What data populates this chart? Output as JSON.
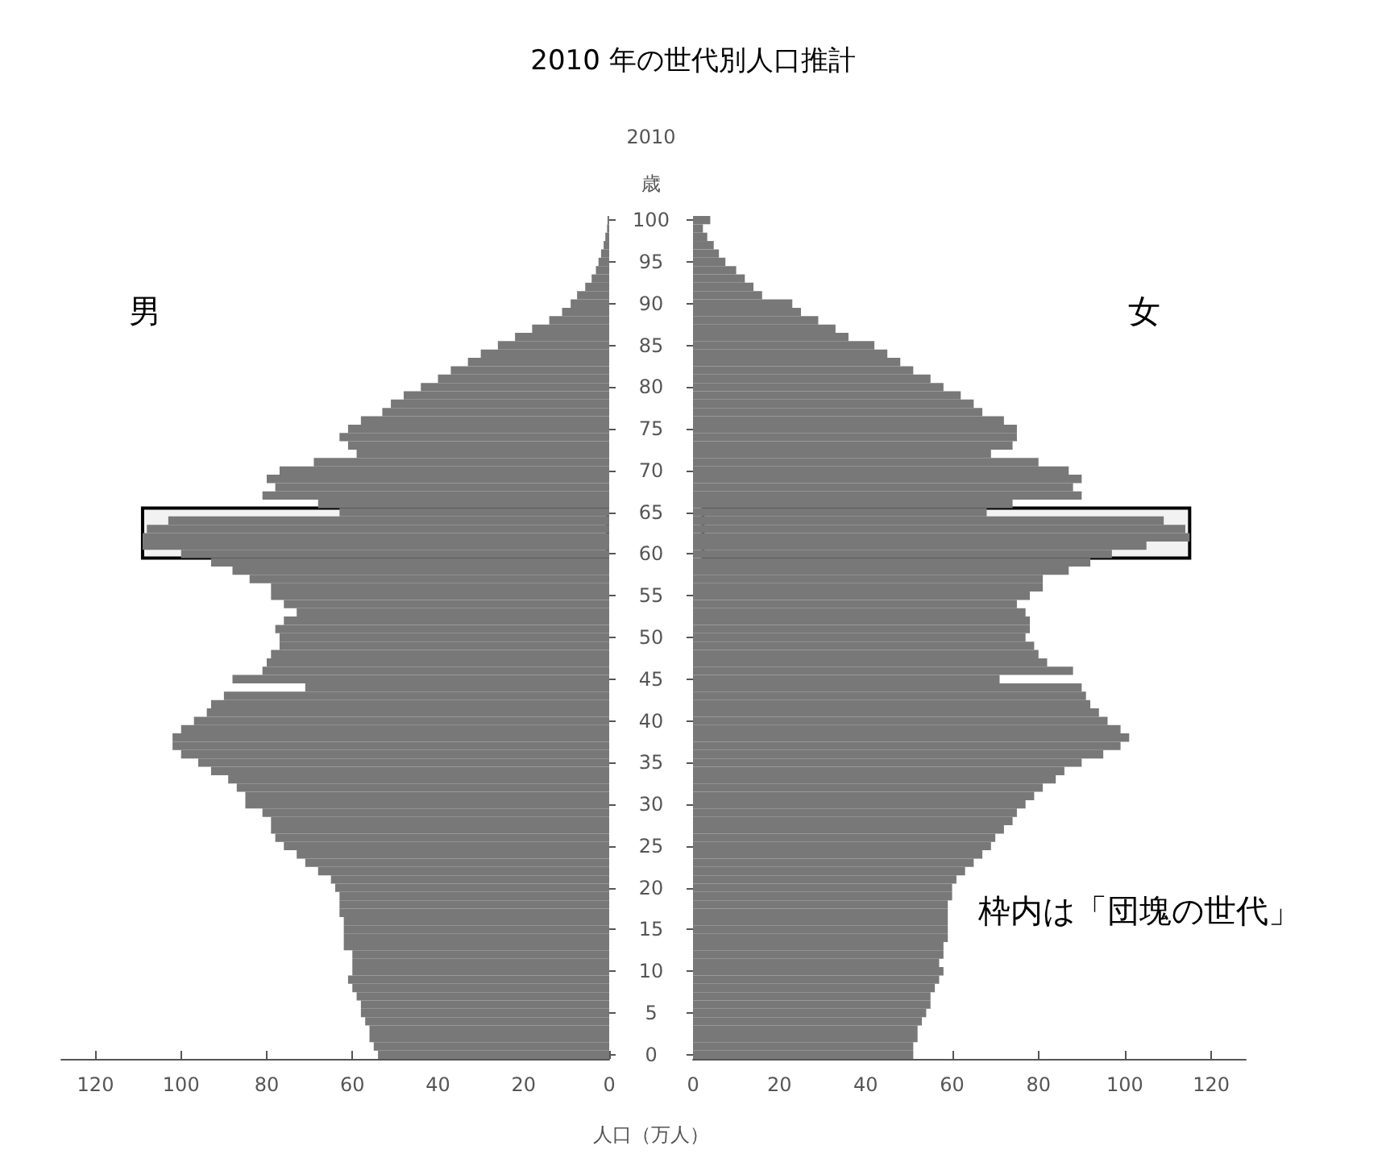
{
  "chart_data": [
    {
      "type": "bar",
      "orientation": "horizontal",
      "title": "2010 年の世代別人口推計",
      "xlabel": "人口（万人）",
      "ylabel": "歳",
      "annotations": [
        "2010"
      ],
      "categories": [
        "100",
        null,
        null,
        null,
        null,
        "95",
        null,
        null,
        null,
        null,
        "90",
        null,
        null,
        null,
        null,
        "85",
        null,
        null,
        null,
        null,
        "80",
        null,
        null,
        null,
        null,
        "75",
        null,
        null,
        null,
        null,
        "70",
        null,
        null,
        null,
        null,
        "65",
        null,
        null,
        null,
        null,
        "60",
        null,
        null,
        null,
        null,
        "55",
        null,
        null,
        null,
        null,
        "50",
        null,
        null,
        null,
        null,
        "45",
        null,
        null,
        null,
        null,
        "40",
        null,
        null,
        null,
        null,
        "35",
        null,
        null,
        null,
        null,
        "30",
        null,
        null,
        null,
        null,
        "25",
        null,
        null,
        null,
        null,
        "20",
        null,
        null,
        null,
        null,
        "15",
        null,
        null,
        null,
        null,
        "10",
        null,
        null,
        null,
        null,
        "5",
        null,
        null,
        null,
        null,
        "0"
      ],
      "series": [
        {
          "name": "男",
          "color": "#787878",
          "values": [
            0.4,
            0.5,
            0.9,
            1.3,
            1.9,
            2.5,
            3.1,
            4.1,
            5.6,
            7.5,
            9,
            11,
            14,
            18,
            22,
            26,
            30,
            33,
            37,
            40,
            44,
            48,
            51,
            53,
            58,
            61,
            63,
            61,
            59,
            69,
            77,
            80,
            78,
            81,
            68,
            63,
            103,
            108,
            109,
            109,
            100,
            93,
            88,
            84,
            79,
            79,
            76,
            73,
            76,
            78,
            77,
            77,
            79,
            80,
            81,
            88,
            71,
            90,
            93,
            94,
            97,
            100,
            102,
            102,
            100,
            96,
            93,
            89,
            87,
            85,
            85,
            81,
            79,
            79,
            78,
            76,
            73,
            71,
            68,
            65,
            64,
            63,
            63,
            63,
            62,
            62,
            62,
            62,
            60,
            60,
            60,
            61,
            60,
            59,
            58,
            58,
            57,
            56,
            56,
            55,
            54
          ]
        }
      ],
      "xlim": [
        128,
        0
      ],
      "xticks": [
        120,
        100,
        80,
        60,
        40,
        20,
        0
      ],
      "bands": [
        {
          "axis": "y",
          "from": "65",
          "to": "60",
          "color": "#000000"
        }
      ]
    },
    {
      "type": "bar",
      "orientation": "horizontal",
      "annotations": [
        "枠内は「団塊の世代」"
      ],
      "tick_labels": "x",
      "categories": [
        "100",
        null,
        null,
        null,
        null,
        "95",
        null,
        null,
        null,
        null,
        "90",
        null,
        null,
        null,
        null,
        "85",
        null,
        null,
        null,
        null,
        "80",
        null,
        null,
        null,
        null,
        "75",
        null,
        null,
        null,
        null,
        "70",
        null,
        null,
        null,
        null,
        "65",
        null,
        null,
        null,
        null,
        "60",
        null,
        null,
        null,
        null,
        "55",
        null,
        null,
        null,
        null,
        "50",
        null,
        null,
        null,
        null,
        "45",
        null,
        null,
        null,
        null,
        "40",
        null,
        null,
        null,
        null,
        "35",
        null,
        null,
        null,
        null,
        "30",
        null,
        null,
        null,
        null,
        "25",
        null,
        null,
        null,
        null,
        "20",
        null,
        null,
        null,
        null,
        "15",
        null,
        null,
        null,
        null,
        "10",
        null,
        null,
        null,
        null,
        "5",
        null,
        null,
        null,
        null,
        "0"
      ],
      "series": [
        {
          "name": "女",
          "color": "#787878",
          "values": [
            4,
            2.3,
            3.3,
            4.8,
            6,
            7.5,
            10,
            12,
            14,
            16,
            23,
            25,
            29,
            33,
            36,
            42,
            45,
            48,
            51,
            55,
            58,
            62,
            65,
            67,
            72,
            75,
            75,
            74,
            69,
            80,
            87,
            90,
            88,
            90,
            74,
            68,
            109,
            114,
            115,
            105,
            97,
            92,
            87,
            81,
            81,
            78,
            75,
            77,
            78,
            78,
            77,
            79,
            80,
            82,
            88,
            71,
            90,
            91,
            92,
            94,
            96,
            99,
            101,
            99,
            95,
            90,
            86,
            84,
            81,
            79,
            77,
            75,
            74,
            72,
            70,
            69,
            67,
            65,
            63,
            61,
            60,
            60,
            59,
            59,
            59,
            59,
            59,
            58,
            58,
            57,
            58,
            57,
            56,
            55,
            55,
            54,
            53,
            52,
            52,
            51,
            51
          ]
        }
      ],
      "xlim": [
        0,
        128
      ],
      "xticks": [
        0,
        20,
        40,
        60,
        80,
        100,
        120
      ],
      "bands": [
        {
          "axis": "y",
          "from": "65",
          "to": "60",
          "color": "#000000"
        }
      ]
    }
  ]
}
